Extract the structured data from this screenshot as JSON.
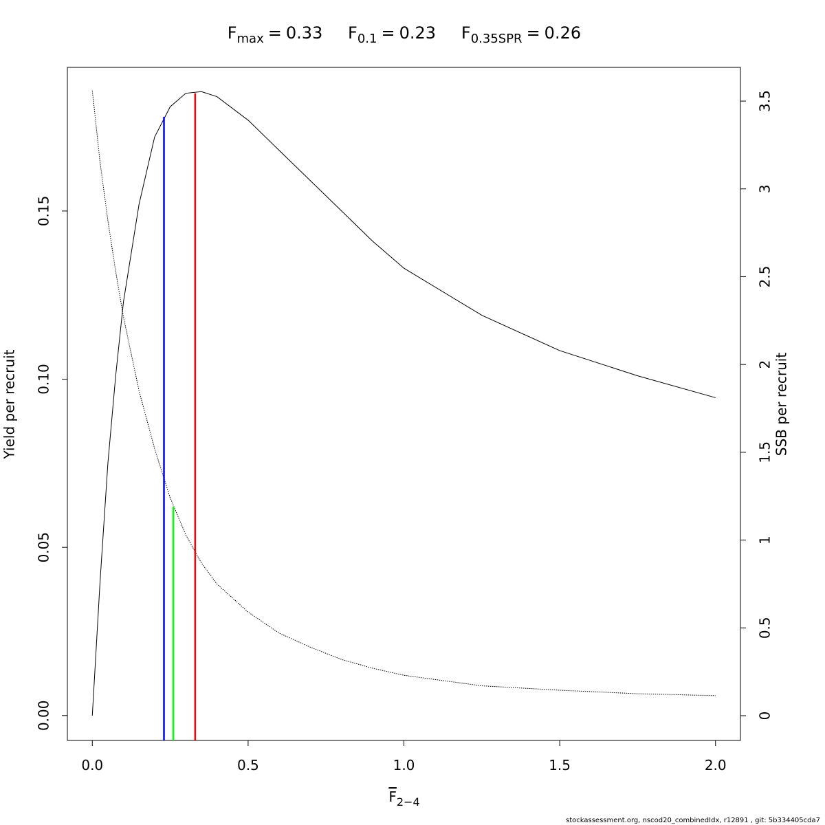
{
  "chart_data": {
    "type": "line",
    "title_parts": [
      {
        "label": "F",
        "subscript": "max",
        "sign": "=",
        "value": 0.33
      },
      {
        "label": "F",
        "subscript": "0.1",
        "sign": "=",
        "value": 0.23
      },
      {
        "label": "F",
        "subscript": "0.35SPR",
        "sign": "=",
        "value": 0.26
      }
    ],
    "xlabel": {
      "label": "F",
      "subscript": "2−4"
    },
    "ylabel": "Yield per recruit",
    "y2label": "SSB per recruit",
    "footer": "stockassessment.org, nscod20_combinedIdx, r12891 , git: 5b334405cda7",
    "x": [
      0,
      0.025,
      0.05,
      0.075,
      0.1,
      0.15,
      0.2,
      0.25,
      0.3,
      0.35,
      0.4,
      0.5,
      0.6,
      0.7,
      0.8,
      0.9,
      1.0,
      1.25,
      1.5,
      1.75,
      2.0
    ],
    "series": [
      {
        "color": "#000000",
        "dash": false,
        "axis": "y",
        "values": [
          0,
          0.04,
          0.075,
          0.101,
          0.123,
          0.152,
          0.172,
          0.181,
          0.185,
          0.1855,
          0.184,
          0.177,
          0.168,
          0.159,
          0.15,
          0.141,
          0.133,
          0.119,
          0.1085,
          0.101,
          0.0945
        ]
      },
      {
        "color": "#000000",
        "dash": true,
        "axis": "y2",
        "values": [
          3.56,
          3.15,
          2.82,
          2.53,
          2.27,
          1.85,
          1.52,
          1.24,
          1.03,
          0.87,
          0.75,
          0.59,
          0.47,
          0.39,
          0.32,
          0.27,
          0.23,
          0.17,
          0.145,
          0.125,
          0.114
        ]
      }
    ],
    "reference_lines": [
      {
        "x": 0.23,
        "top": 0.178,
        "axis": "y",
        "color": "#0000ff"
      },
      {
        "x": 0.26,
        "top": 1.19,
        "axis": "y2",
        "color": "#00ff00"
      },
      {
        "x": 0.33,
        "top": 0.185,
        "axis": "y",
        "color": "#ff0000"
      }
    ],
    "xlim": [
      -0.08,
      2.08
    ],
    "ylim": [
      -0.0074,
      0.1927
    ],
    "y2lim": [
      -0.141,
      3.692
    ],
    "xticks": [
      {
        "value": 0,
        "label": "0.0"
      },
      {
        "value": 0.5,
        "label": "0.5"
      },
      {
        "value": 1,
        "label": "1.0"
      },
      {
        "value": 1.5,
        "label": "1.5"
      },
      {
        "value": 2,
        "label": "2.0"
      }
    ],
    "yticks": [
      {
        "value": 0,
        "label": "0.00"
      },
      {
        "value": 0.05,
        "label": "0.05"
      },
      {
        "value": 0.1,
        "label": "0.10"
      },
      {
        "value": 0.15,
        "label": "0.15"
      }
    ],
    "y2ticks": [
      0,
      0.5,
      1,
      1.5,
      2,
      2.5,
      3,
      3.5
    ],
    "grid": false
  }
}
